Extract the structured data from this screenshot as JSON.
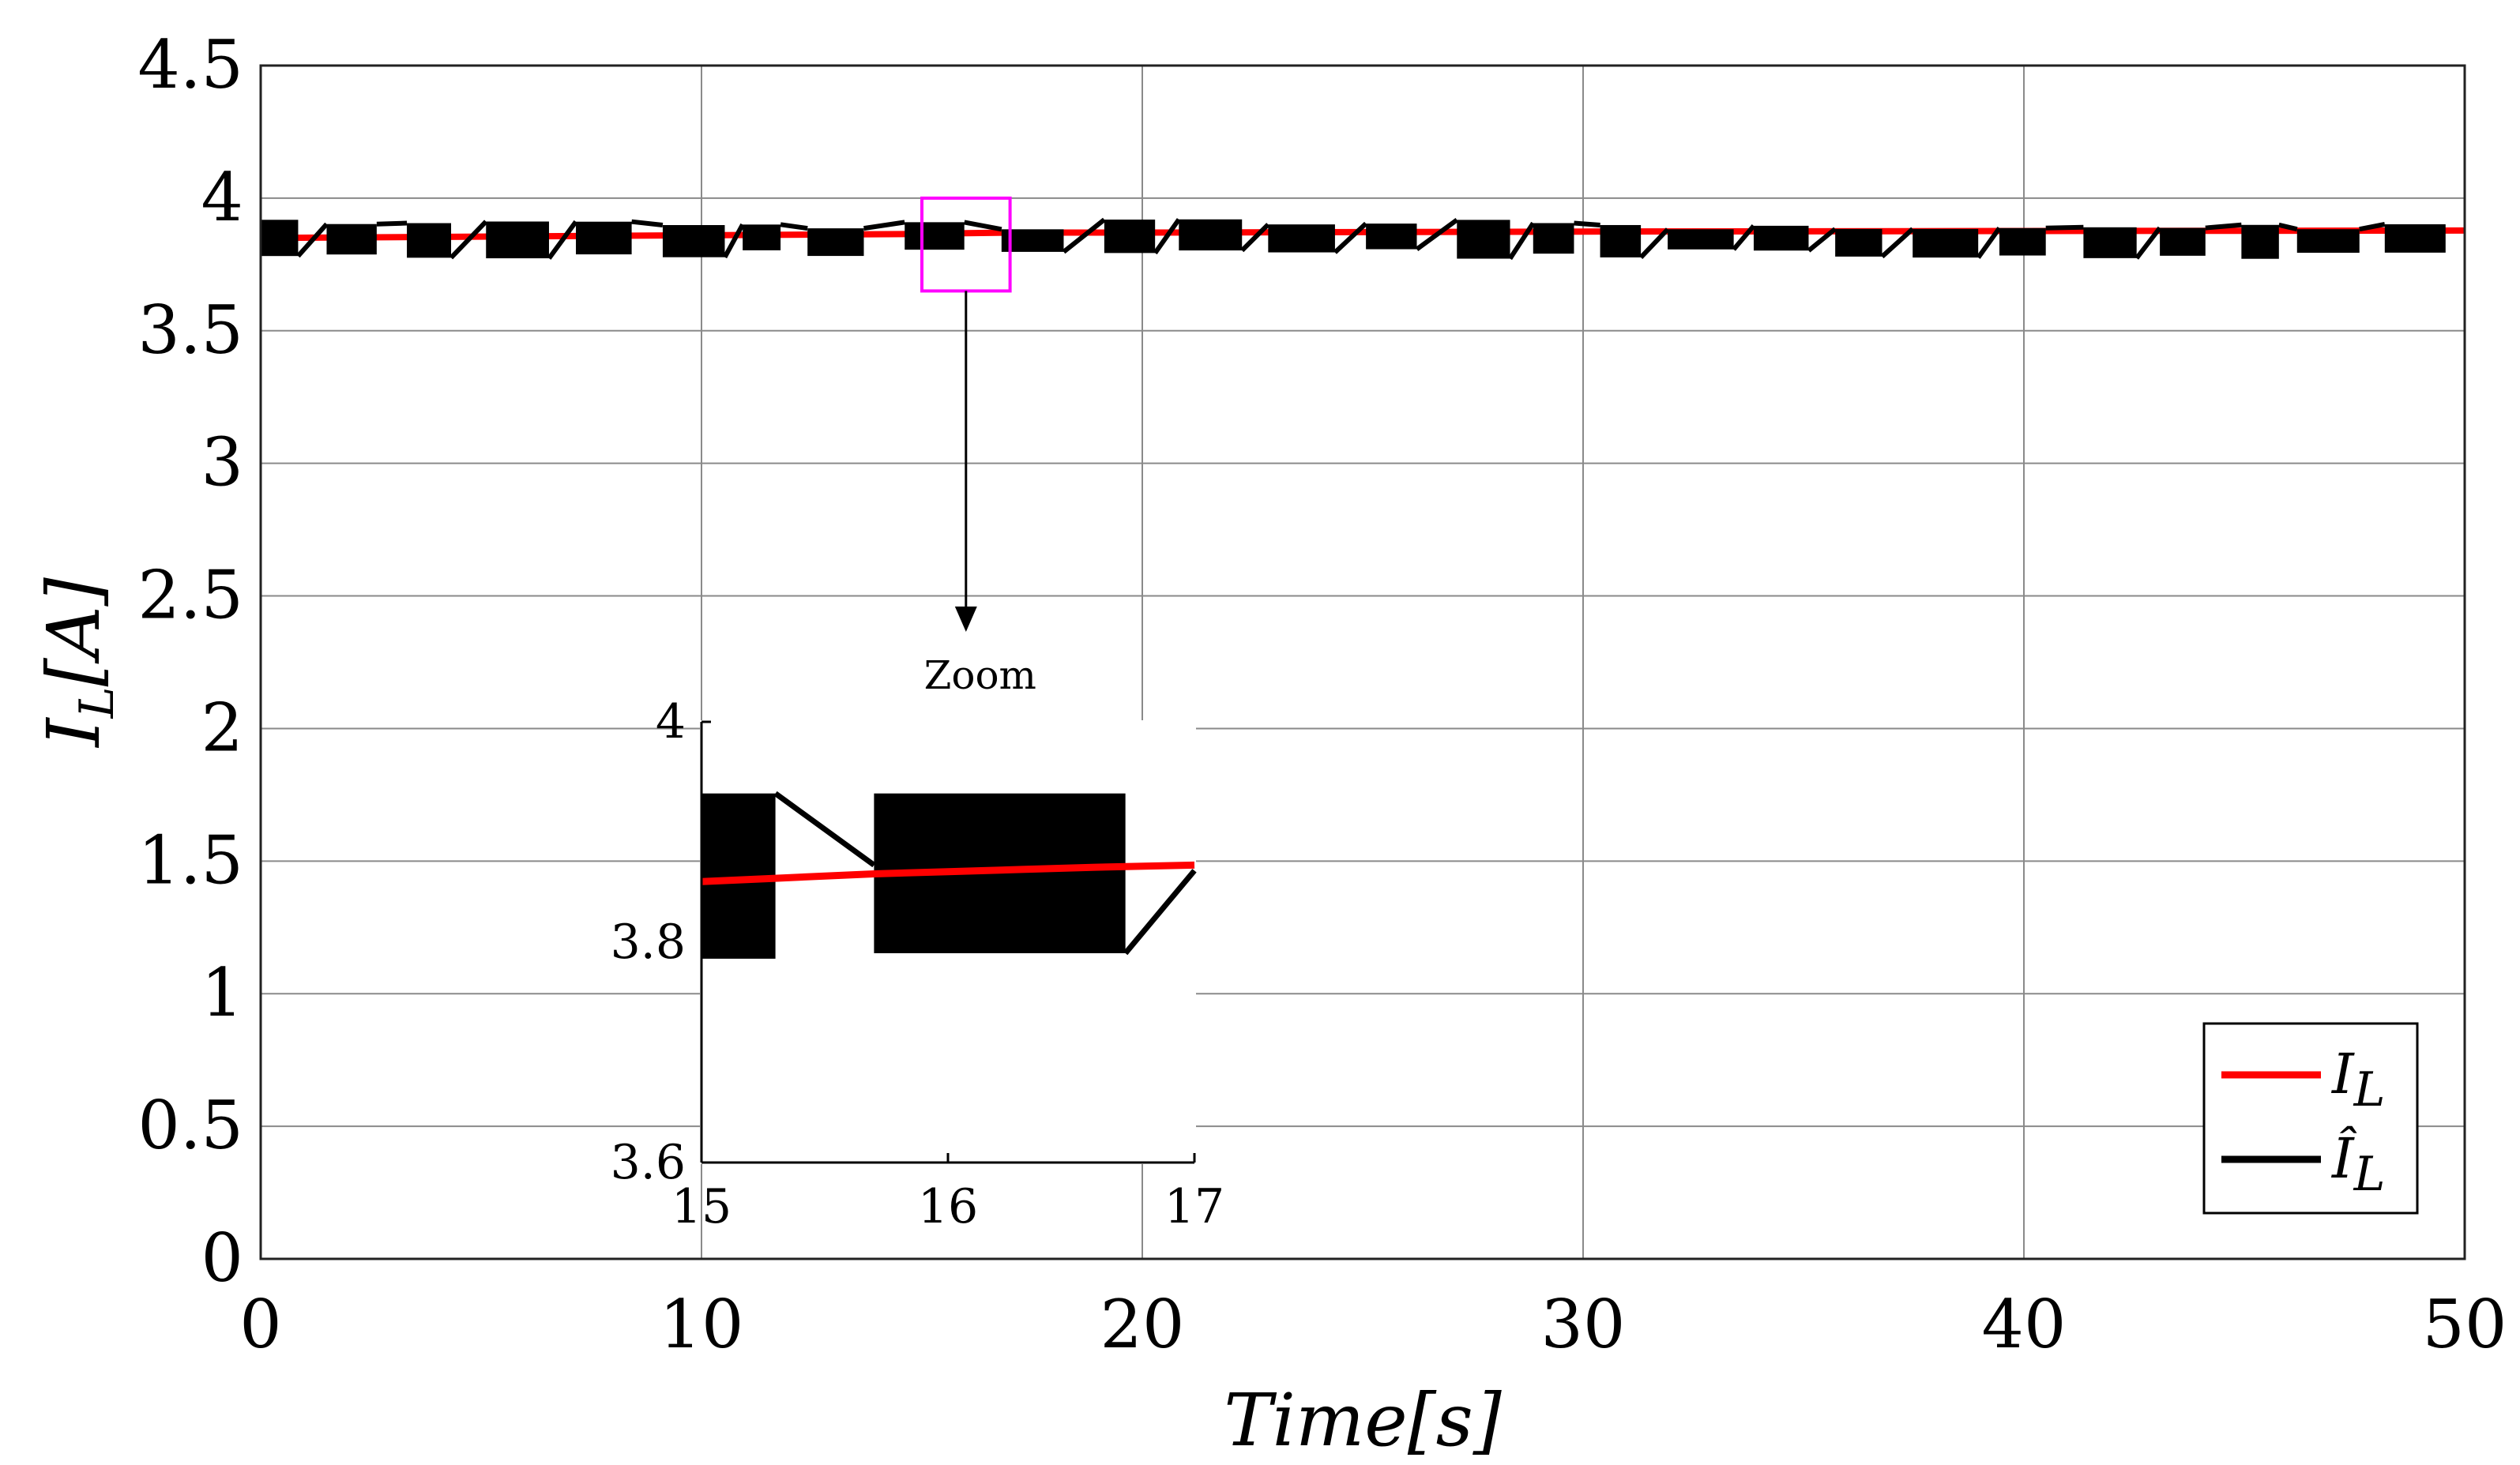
{
  "chart_data": {
    "type": "line",
    "xlabel": "Time[s]",
    "ylabel": "I_L[A]",
    "xlim": [
      0,
      50
    ],
    "ylim": [
      0,
      4.5
    ],
    "xticks": [
      0,
      10,
      20,
      30,
      40,
      50
    ],
    "yticks": [
      0,
      0.5,
      1,
      1.5,
      2,
      2.5,
      3,
      3.5,
      4,
      4.5
    ],
    "xtick_labels": [
      "0",
      "10",
      "20",
      "30",
      "40",
      "50"
    ],
    "ytick_labels": [
      "0",
      "0.5",
      "1",
      "1.5",
      "2",
      "2.5",
      "3",
      "3.5",
      "4",
      "4.5"
    ],
    "grid": true,
    "legend_position": "bottom-right",
    "series": [
      {
        "name": "I_L",
        "color": "#ff0000",
        "x": [
          0,
          5,
          10,
          15,
          16,
          17,
          20,
          25,
          30,
          35,
          40,
          45,
          50
        ],
        "y": [
          3.85,
          3.855,
          3.86,
          3.865,
          3.868,
          3.87,
          3.87,
          3.872,
          3.874,
          3.875,
          3.876,
          3.877,
          3.878
        ]
      },
      {
        "name": "Î_L",
        "color": "#000000",
        "center": 3.84,
        "band_min": 3.77,
        "band_max": 3.92,
        "envelope": "intermittent oscillation blocks along the estimate"
      }
    ],
    "inset": {
      "xlim": [
        15,
        17
      ],
      "ylim": [
        3.6,
        4.0
      ],
      "xticks": [
        15,
        16,
        17
      ],
      "yticks": [
        3.6,
        3.8,
        4.0
      ],
      "xtick_labels": [
        "15",
        "16",
        "17"
      ],
      "ytick_labels": [
        "3.6",
        "3.8",
        "4"
      ],
      "red_x": [
        15,
        15.3,
        15.7,
        16,
        16.3,
        16.6,
        17
      ],
      "red_y": [
        3.855,
        3.858,
        3.862,
        3.864,
        3.866,
        3.868,
        3.87
      ],
      "black_blocks": [
        {
          "x0": 15.0,
          "x1": 15.3,
          "ymin": 3.785,
          "ymax": 3.935
        },
        {
          "x0": 15.7,
          "x1": 16.72,
          "ymin": 3.79,
          "ymax": 3.935
        }
      ],
      "black_lines": [
        {
          "x": [
            15.3,
            15.7
          ],
          "y": [
            3.935,
            3.87
          ]
        },
        {
          "x": [
            16.72,
            17.0
          ],
          "y": [
            3.79,
            3.865
          ]
        }
      ]
    },
    "annotations": {
      "zoom_label": "Zoom",
      "zoom_box": {
        "x0": 15,
        "x1": 17,
        "y0": 3.65,
        "y1": 4.0
      },
      "zoom_box_color": "#ff00ff"
    }
  }
}
